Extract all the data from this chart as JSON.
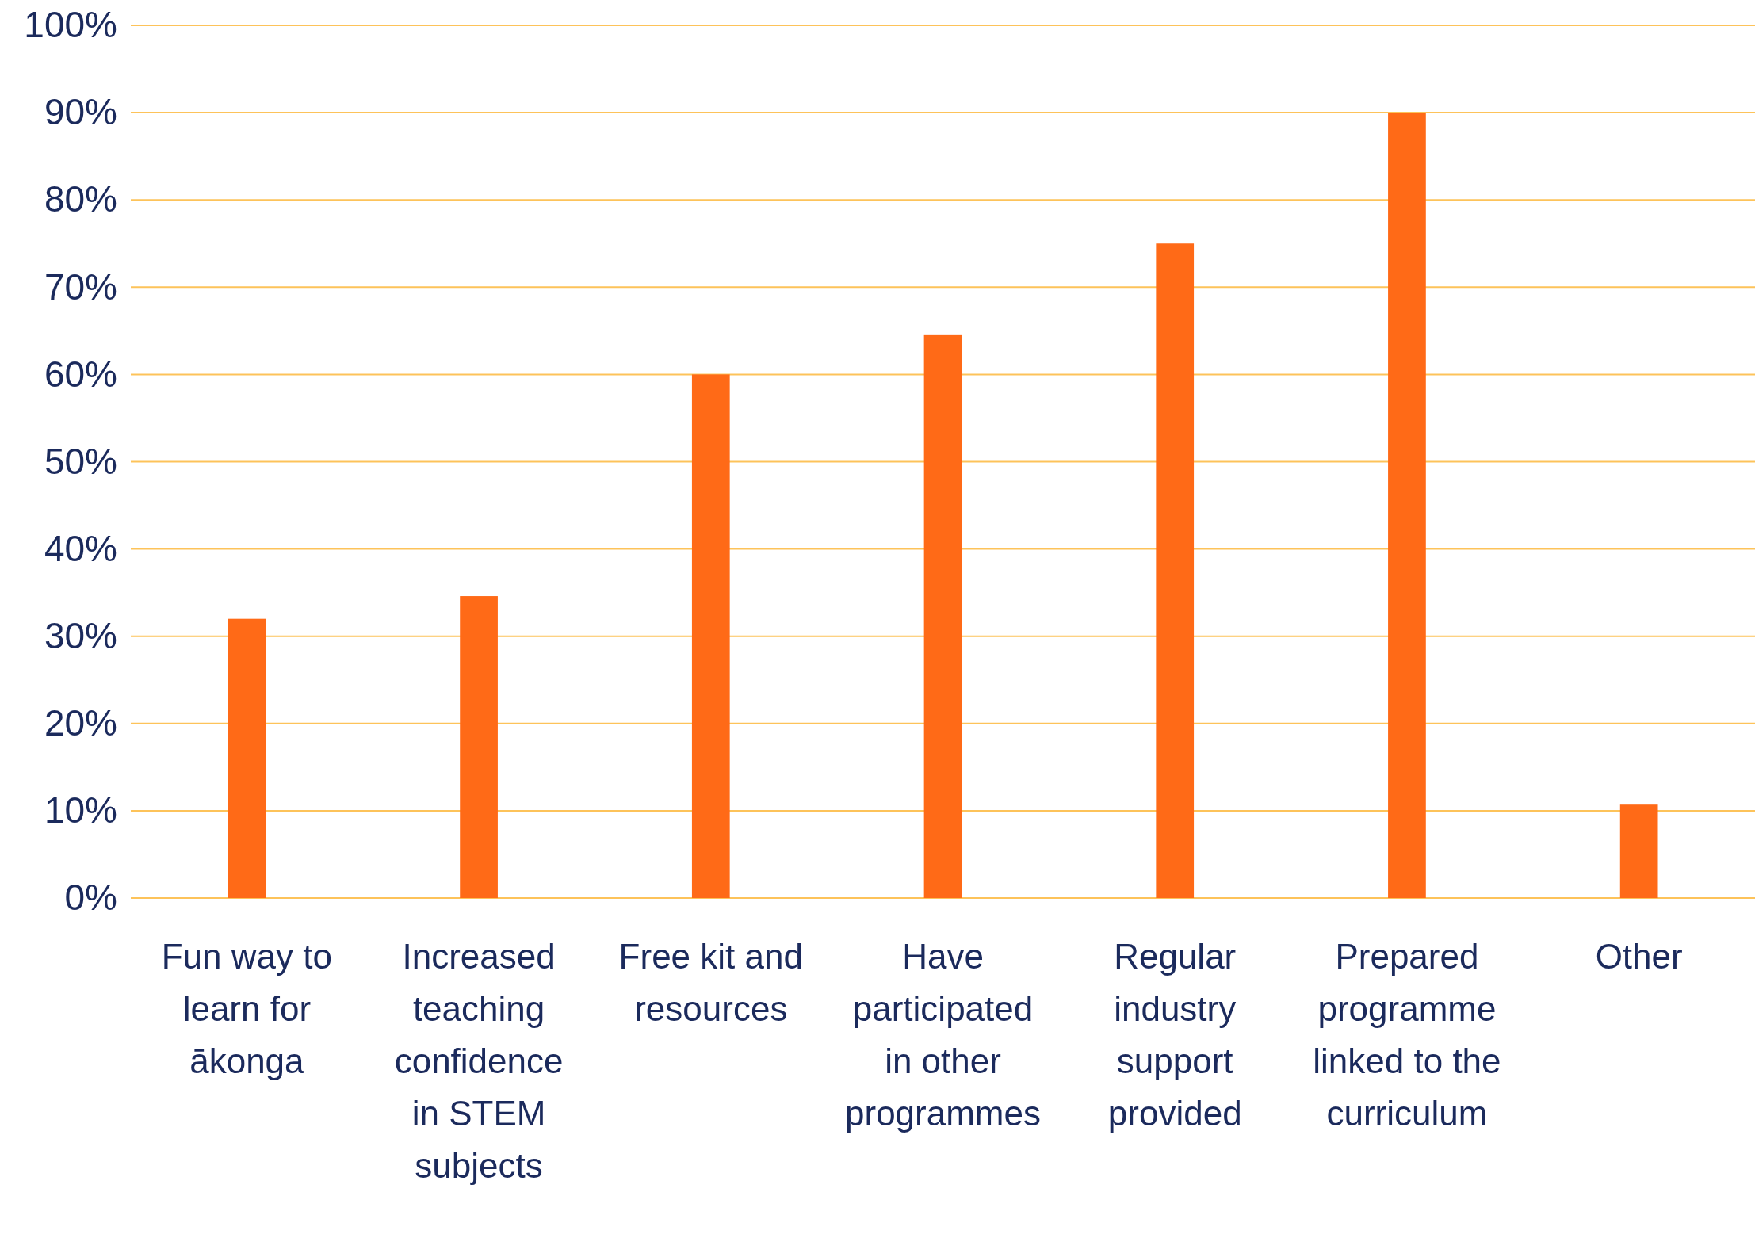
{
  "chart_data": {
    "type": "bar",
    "categories": [
      "Fun way to learn for ākonga",
      "Increased teaching confidence in STEM subjects",
      "Free kit and resources",
      "Have participated in other programmes",
      "Regular industry support provided",
      "Prepared programme linked to the curriculum",
      "Other"
    ],
    "values": [
      32,
      34.6,
      60,
      64.5,
      75,
      90,
      10.7
    ],
    "color": "#ff6a17",
    "ylim": [
      0,
      100
    ],
    "yticks": [
      {
        "value": 0,
        "label": "0%"
      },
      {
        "value": 10,
        "label": "10%"
      },
      {
        "value": 20,
        "label": "20%"
      },
      {
        "value": 30,
        "label": "30%"
      },
      {
        "value": 40,
        "label": "40%"
      },
      {
        "value": 50,
        "label": "50%"
      },
      {
        "value": 60,
        "label": "60%"
      },
      {
        "value": 70,
        "label": "70%"
      },
      {
        "value": 80,
        "label": "80%"
      },
      {
        "value": 90,
        "label": "90%"
      },
      {
        "value": 100,
        "label": "100%"
      }
    ],
    "grid": "y"
  }
}
